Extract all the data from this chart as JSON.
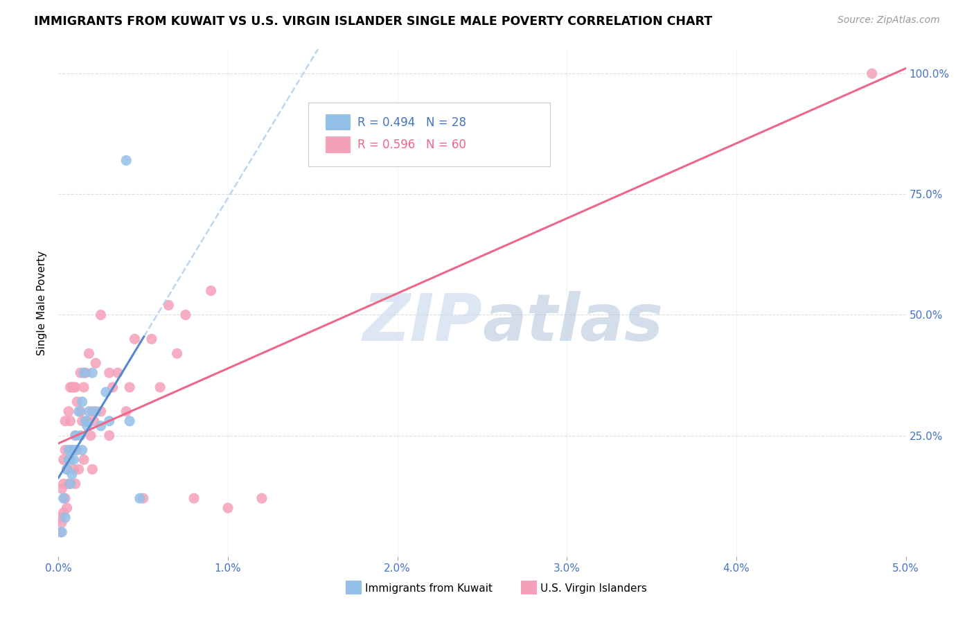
{
  "title": "IMMIGRANTS FROM KUWAIT VS U.S. VIRGIN ISLANDER SINGLE MALE POVERTY CORRELATION CHART",
  "source": "Source: ZipAtlas.com",
  "ylabel": "Single Male Poverty",
  "legend1_label": "R = 0.494   N = 28",
  "legend2_label": "R = 0.596   N = 60",
  "legend_bottom1": "Immigrants from Kuwait",
  "legend_bottom2": "U.S. Virgin Islanders",
  "kuwait_color": "#92c0e8",
  "virgin_color": "#f4a0b8",
  "trend_kuwait_color_solid": "#5588cc",
  "trend_kuwait_color_dash": "#aaccee",
  "trend_virgin_color": "#ee6688",
  "watermark_zip": "ZIP",
  "watermark_atlas": "atlas",
  "kuwait_x": [
    0.0002,
    0.0003,
    0.0004,
    0.0005,
    0.0006,
    0.0006,
    0.0007,
    0.0008,
    0.0008,
    0.0009,
    0.001,
    0.001,
    0.0012,
    0.0013,
    0.0014,
    0.0014,
    0.0015,
    0.0016,
    0.0017,
    0.0018,
    0.002,
    0.0022,
    0.0025,
    0.0028,
    0.003,
    0.004,
    0.0042,
    0.0048
  ],
  "kuwait_y": [
    0.05,
    0.12,
    0.08,
    0.18,
    0.2,
    0.22,
    0.15,
    0.17,
    0.22,
    0.2,
    0.25,
    0.22,
    0.3,
    0.25,
    0.32,
    0.22,
    0.38,
    0.28,
    0.27,
    0.3,
    0.38,
    0.3,
    0.27,
    0.34,
    0.28,
    0.82,
    0.28,
    0.12
  ],
  "virgin_x": [
    0.0001,
    0.0001,
    0.0002,
    0.0002,
    0.0003,
    0.0003,
    0.0003,
    0.0004,
    0.0004,
    0.0004,
    0.0005,
    0.0005,
    0.0006,
    0.0006,
    0.0007,
    0.0007,
    0.0007,
    0.0008,
    0.0008,
    0.0009,
    0.0009,
    0.001,
    0.001,
    0.001,
    0.0011,
    0.0011,
    0.0012,
    0.0013,
    0.0013,
    0.0014,
    0.0015,
    0.0015,
    0.0016,
    0.0017,
    0.0018,
    0.0019,
    0.002,
    0.002,
    0.0021,
    0.0022,
    0.0025,
    0.0025,
    0.003,
    0.003,
    0.0032,
    0.0035,
    0.004,
    0.0042,
    0.0045,
    0.005,
    0.0055,
    0.006,
    0.0065,
    0.007,
    0.0075,
    0.008,
    0.009,
    0.01,
    0.012,
    0.048
  ],
  "virgin_y": [
    0.05,
    0.08,
    0.07,
    0.14,
    0.09,
    0.15,
    0.2,
    0.12,
    0.22,
    0.28,
    0.1,
    0.18,
    0.15,
    0.3,
    0.2,
    0.28,
    0.35,
    0.22,
    0.35,
    0.18,
    0.35,
    0.15,
    0.25,
    0.35,
    0.22,
    0.32,
    0.18,
    0.3,
    0.38,
    0.28,
    0.2,
    0.35,
    0.38,
    0.28,
    0.42,
    0.25,
    0.18,
    0.3,
    0.28,
    0.4,
    0.3,
    0.5,
    0.25,
    0.38,
    0.35,
    0.38,
    0.3,
    0.35,
    0.45,
    0.12,
    0.45,
    0.35,
    0.52,
    0.42,
    0.5,
    0.12,
    0.55,
    0.1,
    0.12,
    1.0
  ],
  "xlim": [
    0.0,
    0.05
  ],
  "ylim": [
    0.0,
    1.05
  ],
  "xtick_positions": [
    0.0,
    0.01,
    0.02,
    0.03,
    0.04,
    0.05
  ],
  "xtick_labels": [
    "0.0%",
    "1.0%",
    "2.0%",
    "3.0%",
    "4.0%",
    "5.0%"
  ],
  "ytick_positions": [
    0.0,
    0.25,
    0.5,
    0.75,
    1.0
  ],
  "ytick_labels": [
    "",
    "25.0%",
    "50.0%",
    "75.0%",
    "100.0%"
  ],
  "tick_color": "#4472c4",
  "grid_color": "#dddddd",
  "trend_slope_kuwait_solid": 55.0,
  "trend_intercept_kuwait_solid": 0.03,
  "trend_slope_kuwait_dash": 22.0,
  "trend_intercept_kuwait_dash": 0.02,
  "trend_slope_virgin": 16.0,
  "trend_intercept_virgin": 0.02
}
